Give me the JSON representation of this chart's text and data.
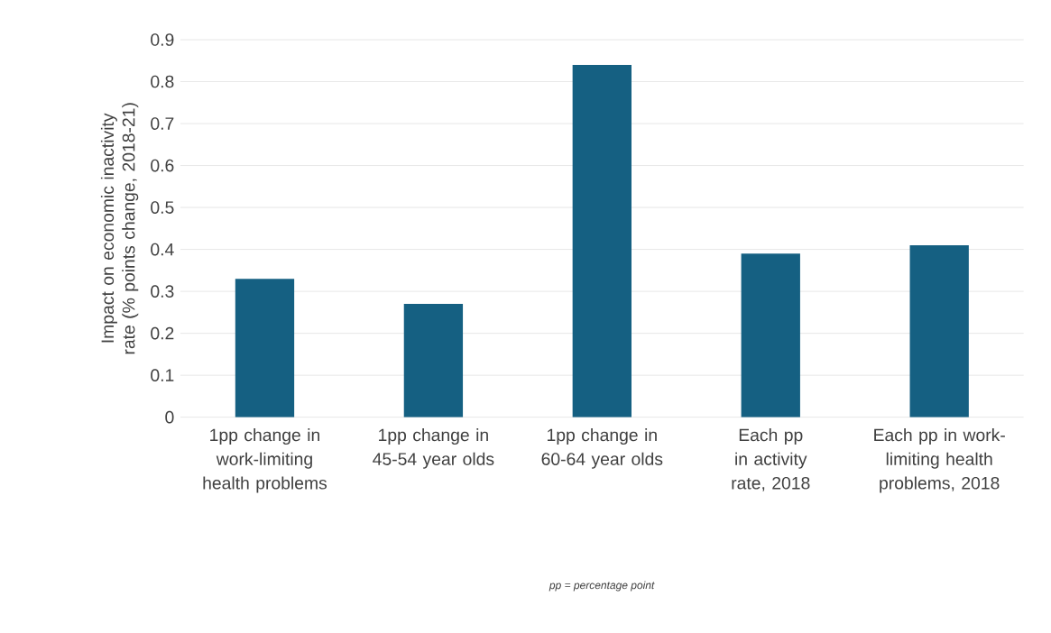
{
  "chart_data": {
    "type": "bar",
    "ylabel": "Impact on economic inactivity rate (% points change, 2018-21)",
    "categories": [
      "1pp change in work-limiting health problems",
      "1pp change in 45-54 year olds",
      "1pp change in 60-64 year olds",
      "Each pp in activity rate, 2018",
      "Each pp in work-limiting health problems, 2018"
    ],
    "values": [
      0.33,
      0.27,
      0.84,
      0.39,
      0.41
    ],
    "color": "#156082",
    "ylim": [
      0,
      0.9
    ],
    "yticks": [
      0,
      0.1,
      0.2,
      0.3,
      0.4,
      0.5,
      0.6,
      0.7,
      0.8,
      0.9
    ],
    "grid": "y",
    "annotations": [
      "*pp = percentage point*"
    ]
  }
}
